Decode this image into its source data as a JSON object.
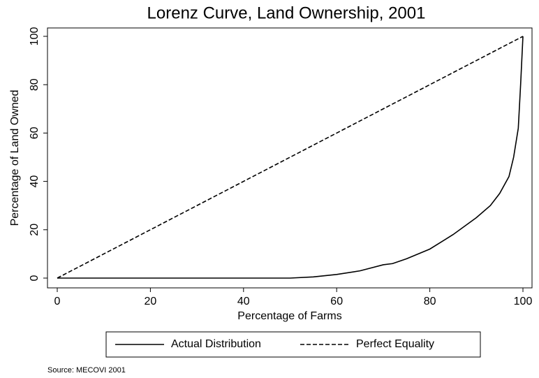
{
  "chart_data": {
    "type": "line",
    "title": "Lorenz Curve, Land Ownership, 2001",
    "x_label": "Percentage of Farms",
    "y_label": "Percentage of Land Owned",
    "note": "Source: MECOVI 2001",
    "series": [
      {
        "name": "Actual Distribution",
        "color": "#000000",
        "dashed": false,
        "x": [
          0,
          50,
          55,
          60,
          65,
          70,
          72,
          75,
          80,
          85,
          90,
          93,
          95,
          97,
          98,
          99,
          99.5,
          100
        ],
        "values": [
          0,
          0,
          0.5,
          1.5,
          3,
          5.5,
          6,
          8,
          12,
          18,
          25,
          30,
          35,
          42,
          50,
          62,
          80,
          100
        ]
      },
      {
        "name": "Perfect Equality",
        "color": "#000000",
        "dashed": true,
        "x": [
          0,
          100
        ],
        "values": [
          0,
          100
        ]
      }
    ],
    "xlim": [
      0,
      100
    ],
    "xticks": [
      0,
      20,
      40,
      60,
      80,
      100
    ],
    "ylim": [
      0,
      100
    ],
    "yticks": [
      0,
      20,
      40,
      60,
      80,
      100
    ]
  }
}
